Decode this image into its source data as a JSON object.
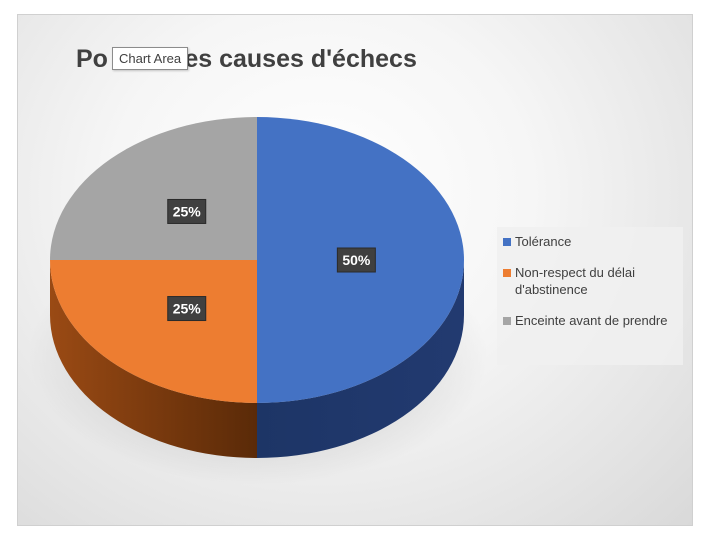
{
  "chart_title": "Po           es causes d'échecs",
  "tooltip": "Chart Area",
  "chart_data": {
    "type": "pie",
    "title": "Po… es causes d'échecs",
    "categories": [
      "Tolérance",
      "Non-respect du délai d'abstinence",
      "Enceinte avant de prendre"
    ],
    "values": [
      50,
      25,
      25
    ],
    "data_labels": [
      "50%",
      "25%",
      "25%"
    ],
    "legend_placement": "right",
    "style": "3d"
  },
  "colors": {
    "tolerance": "#4472c4",
    "non_respect": "#ed7d31",
    "enceinte": "#a5a5a5"
  },
  "legend": {
    "items": [
      {
        "label": "Tolérance",
        "color": "#4472c4"
      },
      {
        "label": "Non-respect du délai d'abstinence",
        "color": "#ed7d31"
      },
      {
        "label": "Enceinte avant de prendre",
        "color": "#a5a5a5"
      }
    ]
  }
}
